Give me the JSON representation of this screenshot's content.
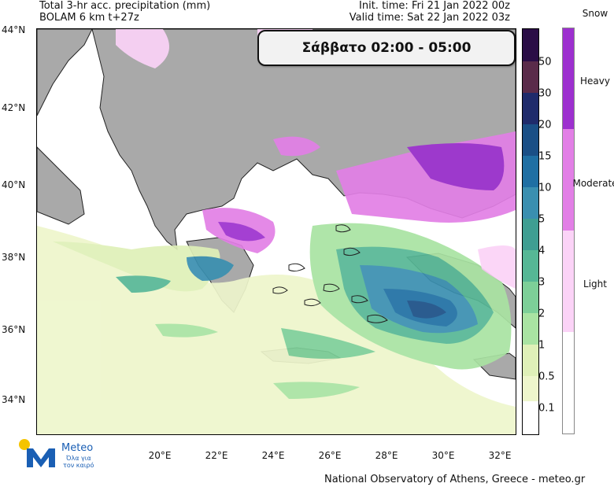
{
  "header": {
    "title_line1": "Total 3-hr acc. precipitation (mm)",
    "title_line2": "BOLAM 6 km t+27z",
    "init_time": "Init. time: Fri 21 Jan 2022 00z",
    "valid_time": "Valid time: Sat 22 Jan 2022 03z"
  },
  "map": {
    "time_window_label": "Σάββατο 02:00 - 05:00",
    "lat_labels": [
      "44°N",
      "42°N",
      "40°N",
      "38°N",
      "36°N",
      "34°N"
    ],
    "lon_labels": [
      "20°E",
      "22°E",
      "24°E",
      "26°E",
      "28°E",
      "30°E",
      "32°E"
    ]
  },
  "precip_colorbar": {
    "labels": [
      "50",
      "30",
      "20",
      "15",
      "10",
      "5",
      "4",
      "3",
      "2",
      "1",
      "0.5",
      "0.1"
    ],
    "colors": [
      "#2a0d46",
      "#5a2b4a",
      "#1f2b6b",
      "#1a4f86",
      "#1f6fa3",
      "#3a8fb0",
      "#3f9e92",
      "#56b795",
      "#7dcf98",
      "#a9e3a2",
      "#dff0b8",
      "#eef6cc",
      "#ffffff"
    ]
  },
  "snow_colorbar": {
    "title": "Snow",
    "labels": [
      "Heavy",
      "Moderate",
      "Light"
    ],
    "colors": [
      "#9d30cf",
      "#e27fe6",
      "#fbd3f7",
      "#ffffff"
    ]
  },
  "logo": {
    "name": "Meteo",
    "tagline_line1": "Όλα για",
    "tagline_line2": "τον καιρό",
    "brand_color": "#1a5fb4",
    "sun_color": "#f5c400"
  },
  "footer": {
    "credit": "National Observatory of Athens, Greece - meteo.gr"
  }
}
